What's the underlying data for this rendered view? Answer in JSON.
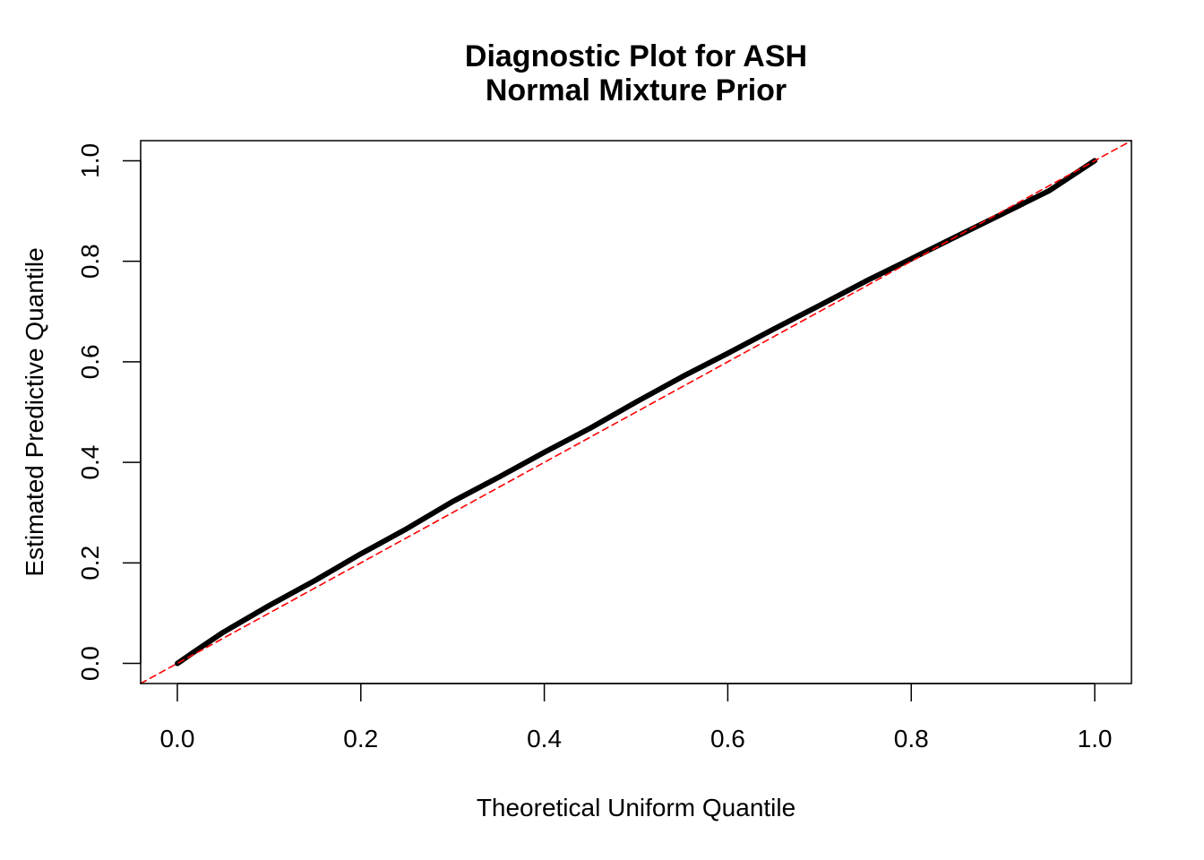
{
  "chart_data": {
    "type": "line",
    "title": "Diagnostic Plot for ASH",
    "subtitle": "Normal Mixture Prior",
    "xlabel": "Theoretical Uniform Quantile",
    "ylabel": "Estimated Predictive Quantile",
    "xlim": [
      -0.04,
      1.04
    ],
    "ylim": [
      -0.04,
      1.04
    ],
    "x_ticks": [
      0.0,
      0.2,
      0.4,
      0.6,
      0.8,
      1.0
    ],
    "y_ticks": [
      0.0,
      0.2,
      0.4,
      0.6,
      0.8,
      1.0
    ],
    "x_tick_labels": [
      "0.0",
      "0.2",
      "0.4",
      "0.6",
      "0.8",
      "1.0"
    ],
    "y_tick_labels": [
      "0.0",
      "0.2",
      "0.4",
      "0.6",
      "0.8",
      "1.0"
    ],
    "grid": false,
    "series": [
      {
        "color": "#000000",
        "style": "solid-thick",
        "x": [
          0.0,
          0.02,
          0.05,
          0.1,
          0.15,
          0.2,
          0.25,
          0.3,
          0.35,
          0.4,
          0.45,
          0.5,
          0.55,
          0.6,
          0.65,
          0.7,
          0.75,
          0.8,
          0.85,
          0.9,
          0.95,
          1.0
        ],
        "y": [
          0.0,
          0.025,
          0.062,
          0.115,
          0.165,
          0.218,
          0.268,
          0.322,
          0.37,
          0.42,
          0.468,
          0.52,
          0.57,
          0.617,
          0.665,
          0.712,
          0.76,
          0.805,
          0.85,
          0.895,
          0.94,
          1.0
        ]
      },
      {
        "color": "#ff0000",
        "style": "dashed",
        "x": [
          -0.04,
          1.04
        ],
        "y": [
          -0.04,
          1.04
        ]
      }
    ]
  }
}
